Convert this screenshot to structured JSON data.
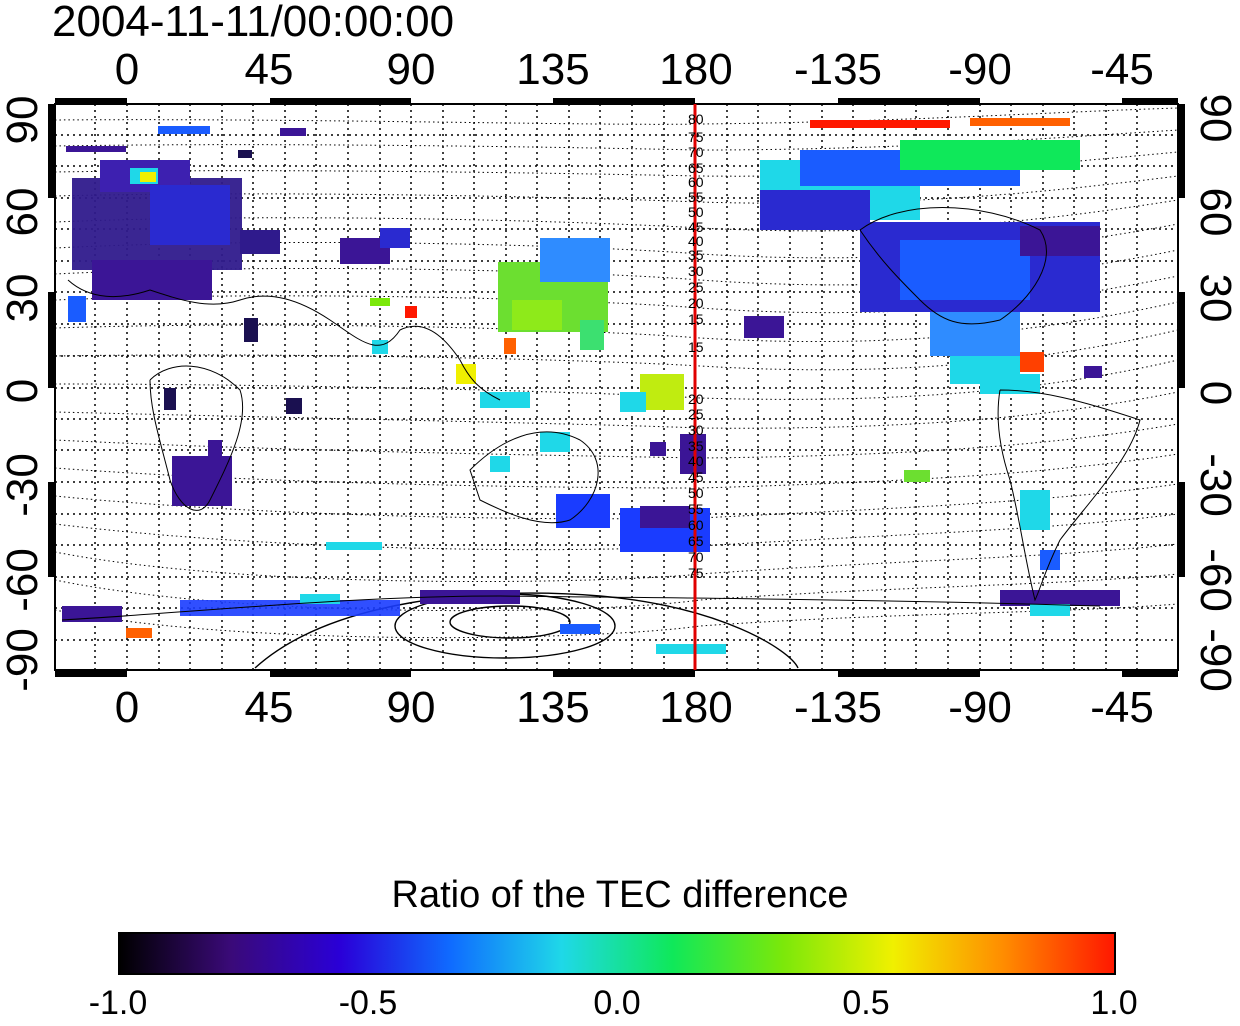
{
  "timestamp": "2004-11-11/00:00:00",
  "lon_ticks": [
    "0",
    "45",
    "90",
    "135",
    "180",
    "-135",
    "-90",
    "-45"
  ],
  "lat_ticks_left": [
    "90",
    "60",
    "30",
    "0",
    "-30",
    "-60",
    "-90"
  ],
  "lat_ticks_right": [
    "90",
    "60",
    "30",
    "0",
    "-30",
    "-60",
    "-90"
  ],
  "meridian_label_values": [
    "80",
    "75",
    "70",
    "65",
    "60",
    "55",
    "50",
    "45",
    "40",
    "35",
    "30",
    "25",
    "20",
    "15",
    "15",
    "20",
    "25",
    "30",
    "35",
    "40",
    "45",
    "50",
    "55",
    "60",
    "65",
    "70",
    "75"
  ],
  "colorbar": {
    "title": "Ratio of the TEC difference",
    "ticks": [
      "-1.0",
      "-0.5",
      "0.0",
      "0.5",
      "1.0"
    ],
    "stops": [
      "#000000",
      "#3a0a78",
      "#2a00d8",
      "#0f6cff",
      "#1fd8e8",
      "#0fe85a",
      "#7be80a",
      "#f0f000",
      "#ff8c00",
      "#ff1800"
    ],
    "range": [
      -1.0,
      1.0
    ]
  },
  "meridian_line": {
    "longitude": 180,
    "color": "#e00000"
  }
}
